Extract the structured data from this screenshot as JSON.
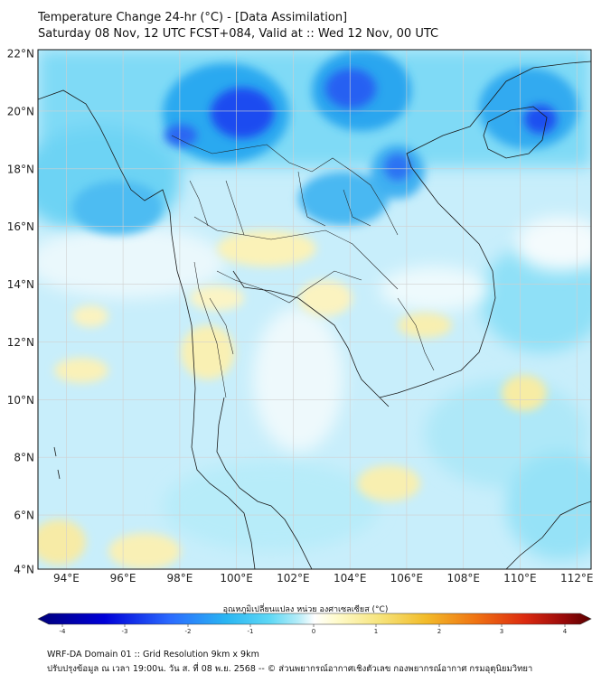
{
  "header": {
    "title_line1": "Temperature Change 24-hr (°C) - [Data Assimilation]",
    "title_line2": "Saturday 08 Nov, 12 UTC FCST+084, Valid at :: Wed 12 Nov, 00 UTC"
  },
  "map": {
    "lat_labels": [
      "22°N",
      "20°N",
      "18°N",
      "16°N",
      "14°N",
      "12°N",
      "10°N",
      "8°N",
      "6°N",
      "4°N"
    ],
    "lon_labels": [
      "94°E",
      "96°E",
      "98°E",
      "100°E",
      "102°E",
      "104°E",
      "106°E",
      "108°E",
      "110°E",
      "112°E"
    ],
    "lat_range": [
      4,
      22
    ],
    "lon_range": [
      93,
      112.5
    ]
  },
  "colorbar": {
    "title": "อุณหภูมิเปลี่ยนแปลง หน่วย องศาเซลเซียส (°C)",
    "ticks": [
      "-4",
      "-3",
      "-2",
      "-1",
      "0",
      "1",
      "2",
      "3",
      "4"
    ],
    "range": [
      -4,
      4
    ],
    "colors": [
      "#00007a",
      "#0000d8",
      "#2b6cff",
      "#29b5f2",
      "#5fd8f5",
      "#b4ecf8",
      "#ffffff",
      "#fffbcc",
      "#f6e37a",
      "#f2bc2a",
      "#f07412",
      "#dc2a10",
      "#9a0a0a",
      "#5a0000"
    ]
  },
  "footer": {
    "line1": "WRF-DA Domain 01 :: Grid Resolution 9km x 9km",
    "line2": "ปรับปรุงข้อมูล ณ เวลา 19:00น. วัน ส. ที่ 08 พ.ย. 2568 -- © ส่วนพยากรณ์อากาศเชิงตัวเลข กองพยากรณ์อากาศ กรมอุตุนิยมวิทยา"
  }
}
